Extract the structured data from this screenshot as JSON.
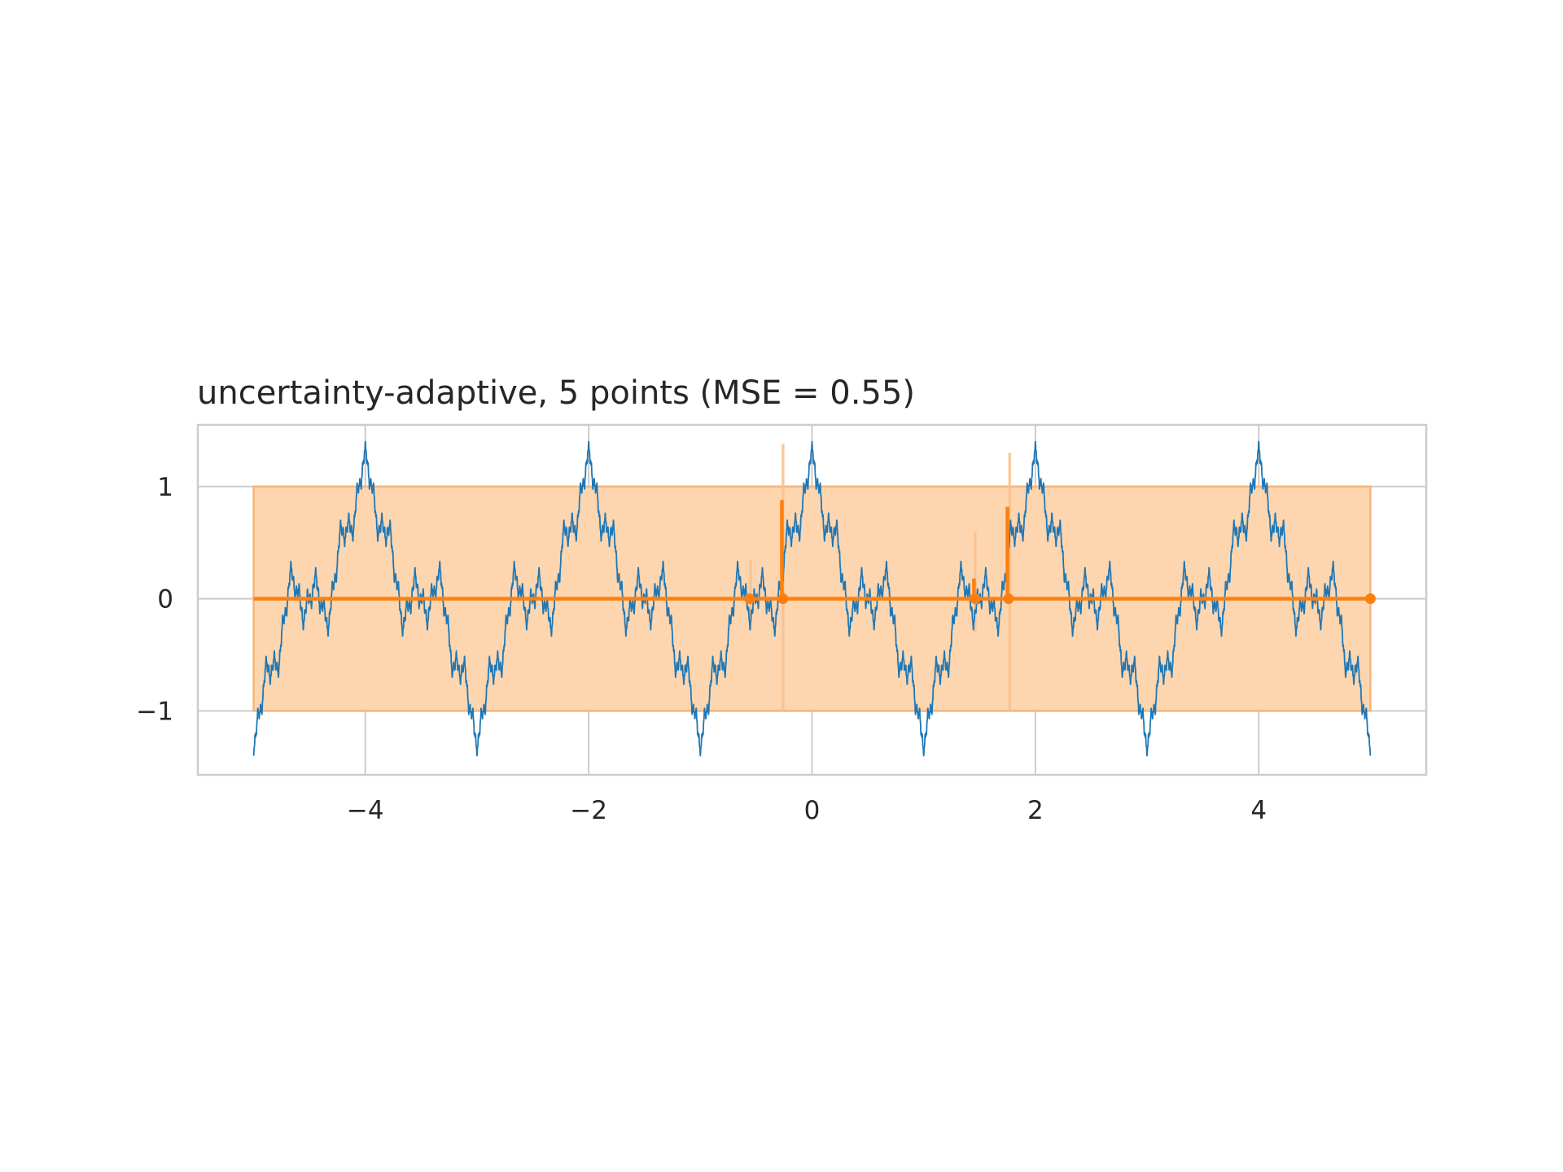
{
  "chart_data": {
    "type": "line",
    "title": "uncertainty-adaptive, 5 points (MSE = 0.55)",
    "xlabel": "",
    "ylabel": "",
    "xlim": [
      -5.5,
      5.5
    ],
    "ylim": [
      -1.57,
      1.55
    ],
    "grid": true,
    "legend": "none",
    "x_ticks": [
      -4,
      -2,
      0,
      2,
      4
    ],
    "x_tick_labels": [
      "−4",
      "−2",
      "0",
      "2",
      "4"
    ],
    "y_ticks": [
      -1,
      0,
      1
    ],
    "y_tick_labels": [
      "−1",
      "0",
      "1"
    ],
    "colors": {
      "true_function": "#1f77b4",
      "prediction": "#ff7f0e",
      "band": "#fdd6b0",
      "grid": "#cccccc",
      "spine": "#cccccc"
    },
    "series": [
      {
        "kind": "function",
        "x_range": [
          -5,
          5
        ],
        "description_formula": "sum_k 0.5^k * cos(3^k * pi * x), k = 0..5",
        "y_min": -1.4,
        "y_max": 1.4
      },
      {
        "kind": "prediction_mean",
        "x_range": [
          -5,
          5
        ],
        "baseline": 0,
        "spikes": [
          {
            "x": -0.27,
            "y": 0.88
          },
          {
            "x": 1.75,
            "y": 0.82
          },
          {
            "x": -0.57,
            "y": 0.02
          },
          {
            "x": 1.45,
            "y": 0.18
          }
        ]
      },
      {
        "kind": "uncertainty_band",
        "x_range": [
          -5,
          5
        ],
        "upper": 1,
        "lower": -1,
        "pinches": [
          {
            "x": -0.55,
            "upper": 0.35,
            "lower": -0.28
          },
          {
            "x": 1.46,
            "upper": 0.6,
            "lower": -0.3
          },
          {
            "x": -0.26,
            "upper": 1.38,
            "lower": -1.0
          },
          {
            "x": 1.77,
            "upper": 1.3,
            "lower": -1.0
          }
        ]
      }
    ],
    "sample_points": [
      {
        "x": -0.26,
        "y": 0.0
      },
      {
        "x": 1.76,
        "y": 0.0
      },
      {
        "x": -0.56,
        "y": 0.0
      },
      {
        "x": 1.46,
        "y": 0.0
      },
      {
        "x": 5.0,
        "y": 0.0
      }
    ]
  }
}
